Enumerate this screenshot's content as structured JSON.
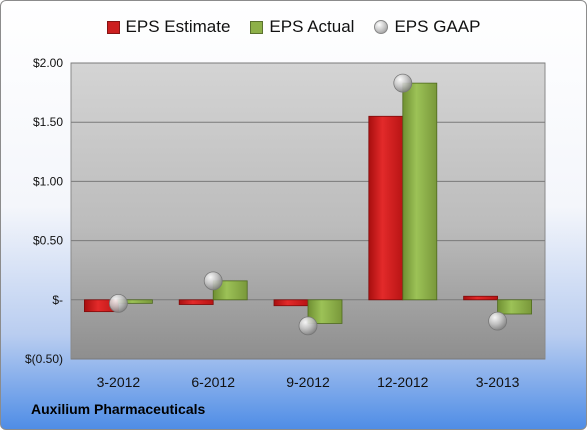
{
  "company": "Auxilium Pharmaceuticals",
  "legend": [
    {
      "label": "EPS Estimate",
      "color": "#cc1f1f",
      "shape": "bar"
    },
    {
      "label": "EPS Actual",
      "color": "#8db048",
      "shape": "bar"
    },
    {
      "label": "EPS GAAP",
      "color": "#bdbdbd",
      "shape": "circle"
    }
  ],
  "chart_data": {
    "type": "bar",
    "categories": [
      "3-2012",
      "6-2012",
      "9-2012",
      "12-2012",
      "3-2013"
    ],
    "series": [
      {
        "name": "EPS Estimate",
        "type": "bar",
        "values": [
          -0.1,
          -0.04,
          -0.05,
          1.55,
          0.03
        ]
      },
      {
        "name": "EPS Actual",
        "type": "bar",
        "values": [
          -0.03,
          0.16,
          -0.2,
          1.83,
          -0.12
        ]
      },
      {
        "name": "EPS GAAP",
        "type": "scatter",
        "values": [
          -0.03,
          0.16,
          -0.22,
          1.83,
          -0.18
        ]
      }
    ],
    "ylim": [
      -0.5,
      2.0
    ],
    "yticks": [
      -0.5,
      0,
      0.5,
      1.0,
      1.5,
      2.0
    ],
    "ytick_labels": [
      "$(0.50)",
      "$-",
      "$0.50",
      "$1.00",
      "$1.50",
      "$2.00"
    ],
    "grid": true
  }
}
